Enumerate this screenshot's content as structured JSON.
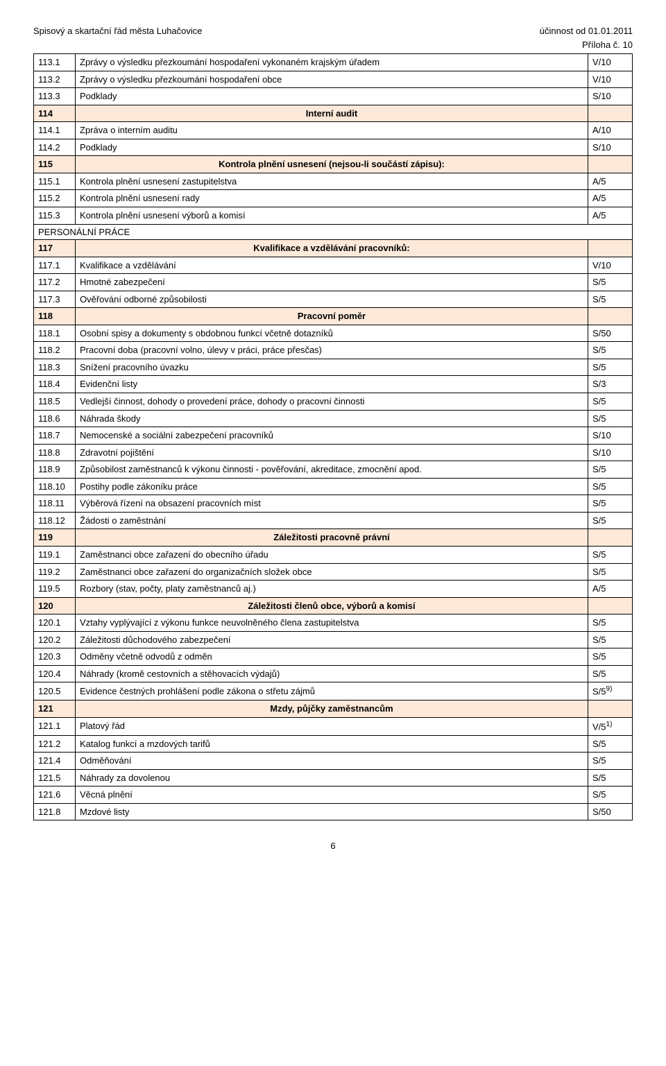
{
  "header": {
    "left": "Spisový a skartační řád města Luhačovice",
    "right": "účinnost od  01.01.2011",
    "priloha": "Příloha č. 10"
  },
  "personal_label": "PERSONÁLNÍ PRÁCE",
  "footer": "6",
  "rows": [
    {
      "type": "row",
      "code": "113.1",
      "title": "Zprávy o výsledku přezkoumání hospodaření vykonaném krajským úřadem",
      "val": "V/10"
    },
    {
      "type": "row",
      "code": "113.2",
      "title": "Zprávy o výsledku přezkoumání hospodaření obce",
      "val": "V/10"
    },
    {
      "type": "row",
      "code": "113.3",
      "title": "Podklady",
      "val": "S/10"
    },
    {
      "type": "section",
      "code": "114",
      "title": "Interní audit",
      "val": ""
    },
    {
      "type": "row",
      "code": "114.1",
      "title": "Zpráva o interním auditu",
      "val": "A/10"
    },
    {
      "type": "row",
      "code": "114.2",
      "title": "Podklady",
      "val": "S/10"
    },
    {
      "type": "section",
      "code": "115",
      "title": "Kontrola plnění usnesení (nejsou-li součástí zápisu):",
      "val": ""
    },
    {
      "type": "row",
      "code": "115.1",
      "title": "Kontrola plnění usnesení zastupitelstva",
      "val": "A/5"
    },
    {
      "type": "row",
      "code": "115.2",
      "title": "Kontrola plnění usnesení rady",
      "val": "A/5"
    },
    {
      "type": "row",
      "code": "115.3",
      "title": "Kontrola plnění usnesení výborů a komisí",
      "val": "A/5"
    },
    {
      "type": "personal"
    },
    {
      "type": "section",
      "code": "117",
      "title": "Kvalifikace a vzdělávání pracovníků:",
      "val": ""
    },
    {
      "type": "row",
      "code": "117.1",
      "title": "Kvalifikace a vzdělávání",
      "val": "V/10"
    },
    {
      "type": "row",
      "code": "117.2",
      "title": "Hmotné zabezpečení",
      "val": "S/5"
    },
    {
      "type": "row",
      "code": "117.3",
      "title": "Ověřování odborné způsobilosti",
      "val": "S/5"
    },
    {
      "type": "section",
      "code": "118",
      "title": "Pracovní poměr",
      "val": ""
    },
    {
      "type": "row",
      "code": "118.1",
      "title": "Osobní spisy a dokumenty s obdobnou funkcí včetně dotazníků",
      "val": "S/50"
    },
    {
      "type": "row",
      "code": "118.2",
      "title": "Pracovní doba (pracovní volno, úlevy v práci, práce přesčas)",
      "val": "S/5"
    },
    {
      "type": "row",
      "code": "118.3",
      "title": "Snížení pracovního úvazku",
      "val": "S/5"
    },
    {
      "type": "row",
      "code": "118.4",
      "title": "Evidenční listy",
      "val": "S/3"
    },
    {
      "type": "row",
      "code": "118.5",
      "title": "Vedlejší činnost, dohody o provedení práce, dohody o pracovní činnosti",
      "val": "S/5"
    },
    {
      "type": "row",
      "code": "118.6",
      "title": "Náhrada škody",
      "val": "S/5"
    },
    {
      "type": "row",
      "code": "118.7",
      "title": "Nemocenské a sociální zabezpečení pracovníků",
      "val": "S/10"
    },
    {
      "type": "row",
      "code": "118.8",
      "title": "Zdravotní pojištění",
      "val": "S/10"
    },
    {
      "type": "row",
      "code": "118.9",
      "title": "Způsobilost zaměstnanců k výkonu činnosti - pověřování, akreditace, zmocnění apod.",
      "val": "S/5"
    },
    {
      "type": "row",
      "code": "118.10",
      "title": "Postihy podle zákoníku práce",
      "val": "S/5"
    },
    {
      "type": "row",
      "code": "118.11",
      "title": "Výběrová řízení na obsazení pracovních míst",
      "val": "S/5"
    },
    {
      "type": "row",
      "code": "118.12",
      "title": "Žádosti o zaměstnání",
      "val": "S/5"
    },
    {
      "type": "section",
      "code": "119",
      "title": "Záležitosti pracovně právní",
      "val": ""
    },
    {
      "type": "row",
      "code": "119.1",
      "title": "Zaměstnanci obce zařazení do obecního úřadu",
      "val": "S/5"
    },
    {
      "type": "row",
      "code": "119.2",
      "title": "Zaměstnanci obce zařazení do organizačních složek obce",
      "val": "S/5"
    },
    {
      "type": "row",
      "code": "119.5",
      "title": "Rozbory (stav, počty, platy zaměstnanců aj.)",
      "val": "A/5"
    },
    {
      "type": "section",
      "code": "120",
      "title": "Záležitosti členů obce, výborů a komisí",
      "val": ""
    },
    {
      "type": "row",
      "code": "120.1",
      "title": "Vztahy vyplývající z výkonu funkce neuvolněného člena zastupitelstva",
      "val": "S/5"
    },
    {
      "type": "row",
      "code": "120.2",
      "title": "Záležitosti důchodového zabezpečení",
      "val": "S/5"
    },
    {
      "type": "row",
      "code": "120.3",
      "title": "Odměny včetně odvodů z odměn",
      "val": "S/5"
    },
    {
      "type": "row",
      "code": "120.4",
      "title": "Náhrady (kromě cestovních a stěhovacích výdajů)",
      "val": "S/5"
    },
    {
      "type": "row",
      "code": "120.5",
      "title": "Evidence čestných prohlášení podle zákona o střetu zájmů",
      "val": "S/5",
      "sup": "9)"
    },
    {
      "type": "section",
      "code": "121",
      "title": "Mzdy, půjčky zaměstnancům",
      "val": ""
    },
    {
      "type": "row",
      "code": "121.1",
      "title": "Platový řád",
      "val": "V/5",
      "sup": "1)"
    },
    {
      "type": "row",
      "code": "121.2",
      "title": "Katalog funkcí a mzdových tarifů",
      "val": "S/5"
    },
    {
      "type": "row",
      "code": "121.4",
      "title": "Odměňování",
      "val": "S/5"
    },
    {
      "type": "row",
      "code": "121.5",
      "title": "Náhrady za dovolenou",
      "val": "S/5"
    },
    {
      "type": "row",
      "code": "121.6",
      "title": "Věcná plnění",
      "val": "S/5"
    },
    {
      "type": "row",
      "code": "121.8",
      "title": "Mzdové listy",
      "val": "S/50"
    }
  ]
}
